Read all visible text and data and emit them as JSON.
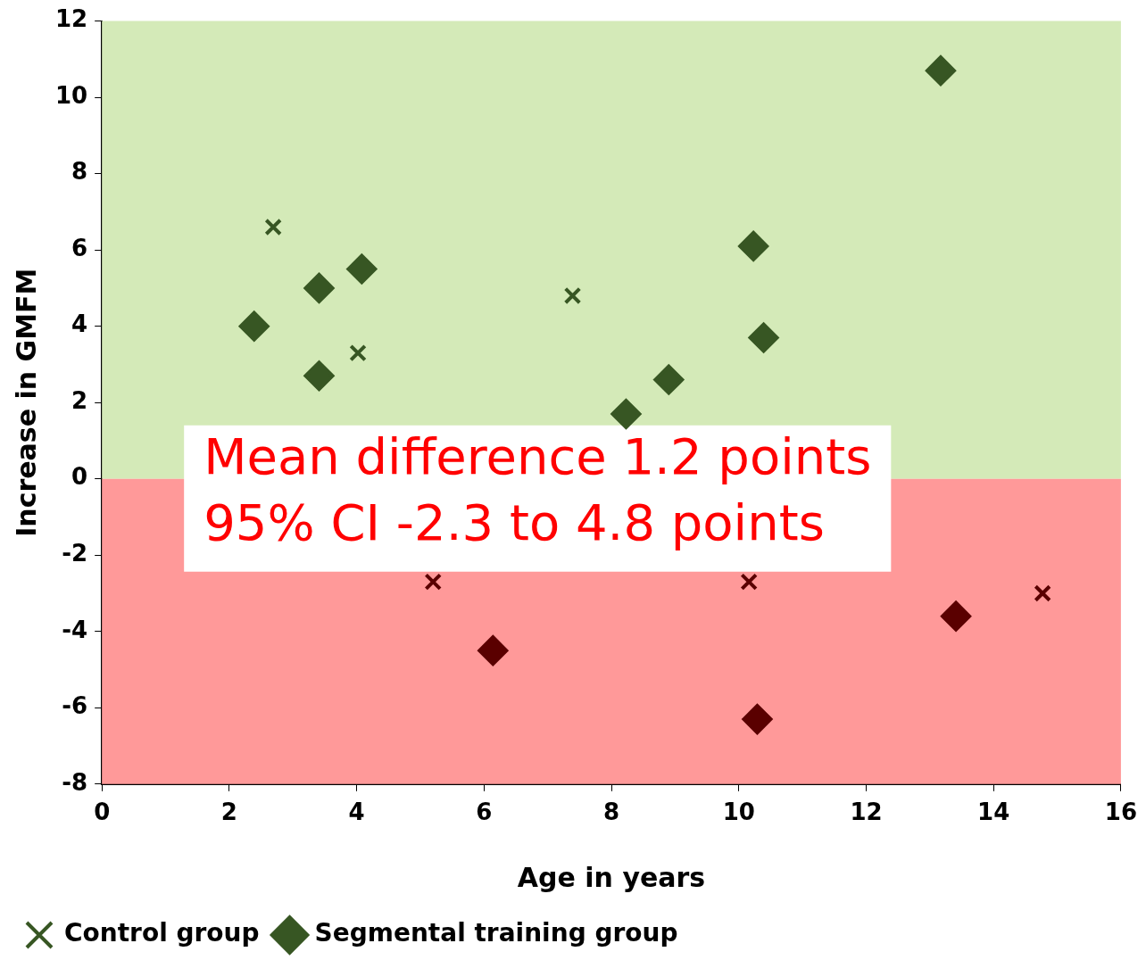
{
  "chart_data": {
    "type": "scatter",
    "xlabel": "Age in years",
    "ylabel": "Increase in GMFM",
    "xlim": [
      0,
      16
    ],
    "xticks": [
      0,
      2,
      4,
      6,
      8,
      10,
      12,
      14,
      16
    ],
    "ylim": [
      -8,
      12
    ],
    "yticks": [
      -8,
      -6,
      -4,
      -2,
      0,
      2,
      4,
      6,
      8,
      10,
      12
    ],
    "grid": false,
    "legend": "bottom",
    "series": [
      {
        "name": "Control group",
        "marker": "cross",
        "x": [
          2.69,
          4.02,
          7.39,
          5.2,
          10.16,
          14.77
        ],
        "values": [
          6.6,
          3.3,
          4.8,
          -2.7,
          -2.7,
          -3
        ],
        "colors": [
          "#375623",
          "#375623",
          "#375623",
          "#5a0000",
          "#5a0000",
          "#5a0000"
        ]
      },
      {
        "name": "Segmental training group",
        "marker": "diamond",
        "x": [
          2.39,
          3.41,
          4.08,
          3.41,
          8.23,
          8.9,
          10.23,
          10.39,
          13.17,
          6.14,
          10.29,
          13.41
        ],
        "values": [
          4,
          5,
          5.5,
          2.7,
          1.7,
          2.6,
          6.1,
          3.7,
          10.7,
          -4.5,
          -6.3,
          -3.6
        ],
        "colors": [
          "#375623",
          "#375623",
          "#375623",
          "#375623",
          "#375623",
          "#375623",
          "#375623",
          "#375623",
          "#375623",
          "#5a0000",
          "#5a0000",
          "#5a0000"
        ]
      }
    ],
    "bands": [
      {
        "axis": "y",
        "from": 0,
        "to": 12,
        "color": "#d4eab8"
      },
      {
        "axis": "y",
        "from": -8,
        "to": 0,
        "color": "#ff9999"
      }
    ],
    "annotations": [
      "Mean difference 1.2 points",
      "95% CI -2.3 to 4.8 points"
    ]
  }
}
